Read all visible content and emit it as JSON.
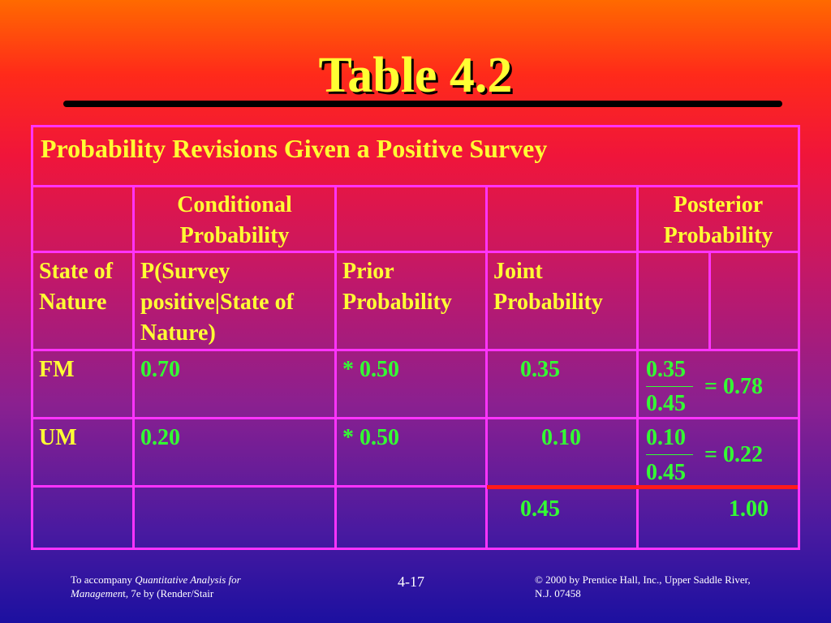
{
  "slide_title": "Table 4.2",
  "table": {
    "caption": "Probability Revisions Given a Positive Survey",
    "group_headers": {
      "conditional": "Conditional Probability",
      "posterior": "Posterior Probability"
    },
    "column_headers": {
      "state": "State of Nature",
      "likelihood": "P(Survey positive|State of Nature)",
      "prior": "Prior Probability",
      "joint": "Joint Probability"
    },
    "rows": [
      {
        "state": "FM",
        "likelihood": "0.70",
        "prior": "* 0.50",
        "joint": "0.35",
        "num": "0.35",
        "den": "0.45",
        "posterior": "= 0.78"
      },
      {
        "state": "UM",
        "likelihood": "0.20",
        "prior": "* 0.50",
        "joint": "0.10",
        "num": "0.10",
        "den": "0.45",
        "posterior": "= 0.22"
      }
    ],
    "totals": {
      "joint": "0.45",
      "posterior": "1.00"
    }
  },
  "footer": {
    "left_line1_prefix": "To accompany ",
    "left_line1_italic": "Quantitative Analysis for",
    "left_line2_italic": "Managemen",
    "left_line2_rest": "t, 7e by (Render/Stair",
    "page": "4-17",
    "right_line1": "© 2000 by Prentice Hall, Inc., Upper Saddle River,",
    "right_line2": "N.J. 07458"
  },
  "colors": {
    "title": "#ffff33",
    "grid": "#ff33ff",
    "values": "#33ff33",
    "total_rule": "#ff1a1a"
  }
}
